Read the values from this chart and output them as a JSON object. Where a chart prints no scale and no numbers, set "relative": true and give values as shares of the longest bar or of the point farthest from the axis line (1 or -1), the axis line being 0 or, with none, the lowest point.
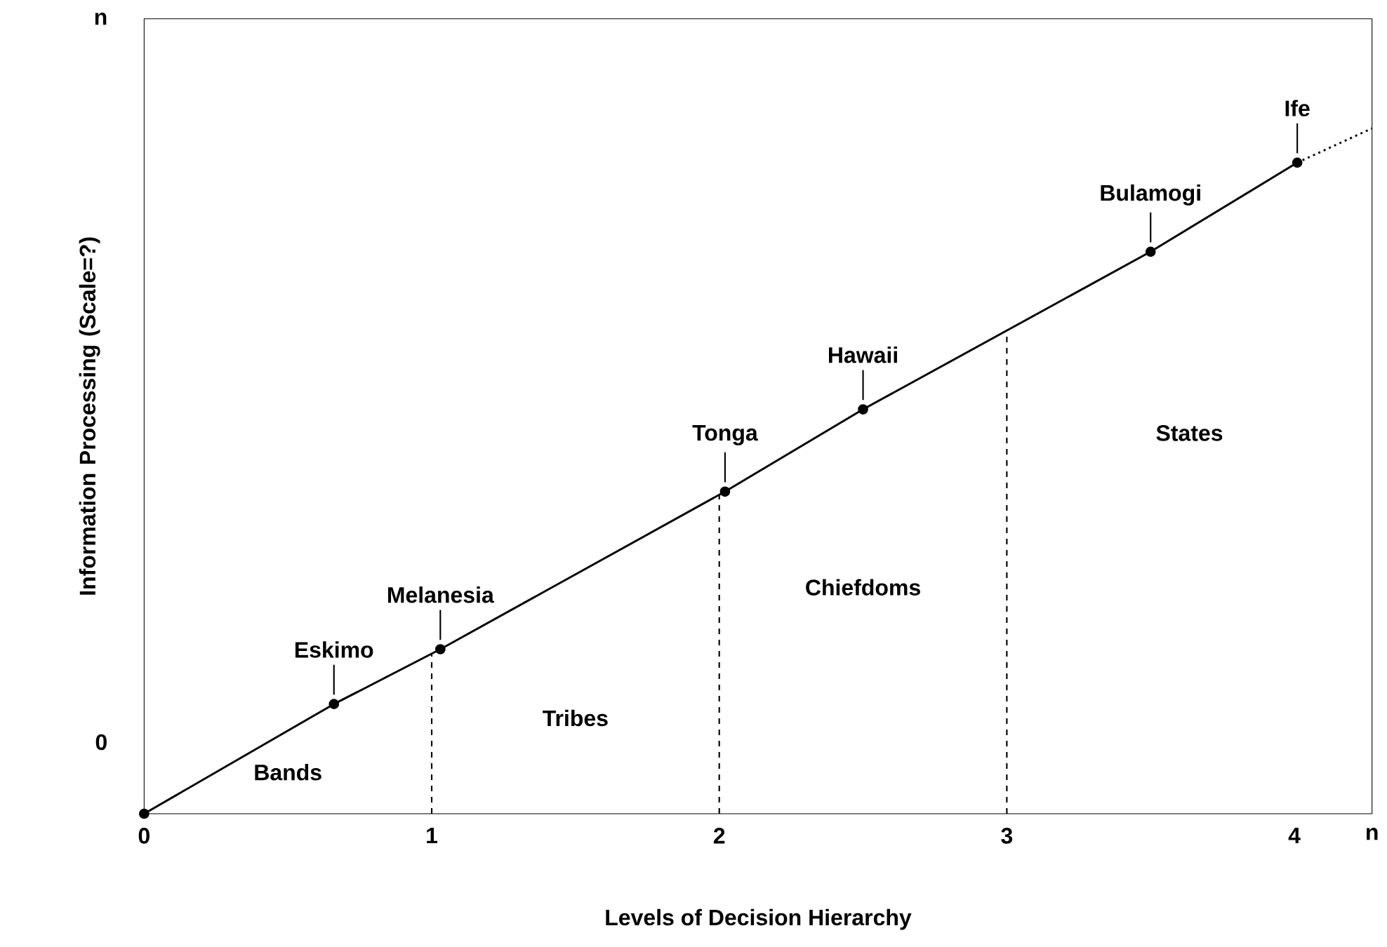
{
  "chart_data": {
    "type": "line",
    "relative": true,
    "xlabel": "Levels of Decision Hierarchy",
    "ylabel": "Information Processing (Scale=?)",
    "xlim": [
      0,
      4.27
    ],
    "xticks": [
      0,
      1,
      2,
      3,
      4,
      {
        "value": 4.27,
        "label": "n"
      }
    ],
    "series": [
      {
        "color": "#000000",
        "marker": "circle",
        "line_style": "solid",
        "x": [
          0,
          0.66,
          1.03,
          2.02,
          2.5,
          3.5,
          4.01
        ],
        "values": [
          0,
          0.16,
          0.24,
          0.47,
          0.59,
          0.82,
          0.95
        ]
      },
      {
        "color": "#000000",
        "marker": "none",
        "line_style": "dotted",
        "x": [
          4.01,
          4.27
        ],
        "values": [
          0.95,
          1
        ]
      }
    ],
    "ref_lines": [
      {
        "axis": "x",
        "value": 1,
        "line_style": "dashed"
      },
      {
        "axis": "x",
        "value": 2,
        "line_style": "dashed"
      },
      {
        "axis": "x",
        "value": 3,
        "line_style": "dashed"
      }
    ],
    "annotations": [
      "n",
      "0",
      {
        "text": "Eskimo",
        "x": 0.66,
        "y": 0.16
      },
      {
        "text": "Melanesia",
        "x": 1.03,
        "y": 0.24
      },
      {
        "text": "Tonga",
        "x": 2.02,
        "y": 0.47
      },
      {
        "text": "Hawaii",
        "x": 2.5,
        "y": 0.59
      },
      {
        "text": "Bulamogi",
        "x": 3.5,
        "y": 0.82
      },
      {
        "text": "Ife",
        "x": 4.01,
        "y": 0.95
      },
      "Bands",
      "Tribes",
      "Chiefdoms",
      "States"
    ]
  }
}
